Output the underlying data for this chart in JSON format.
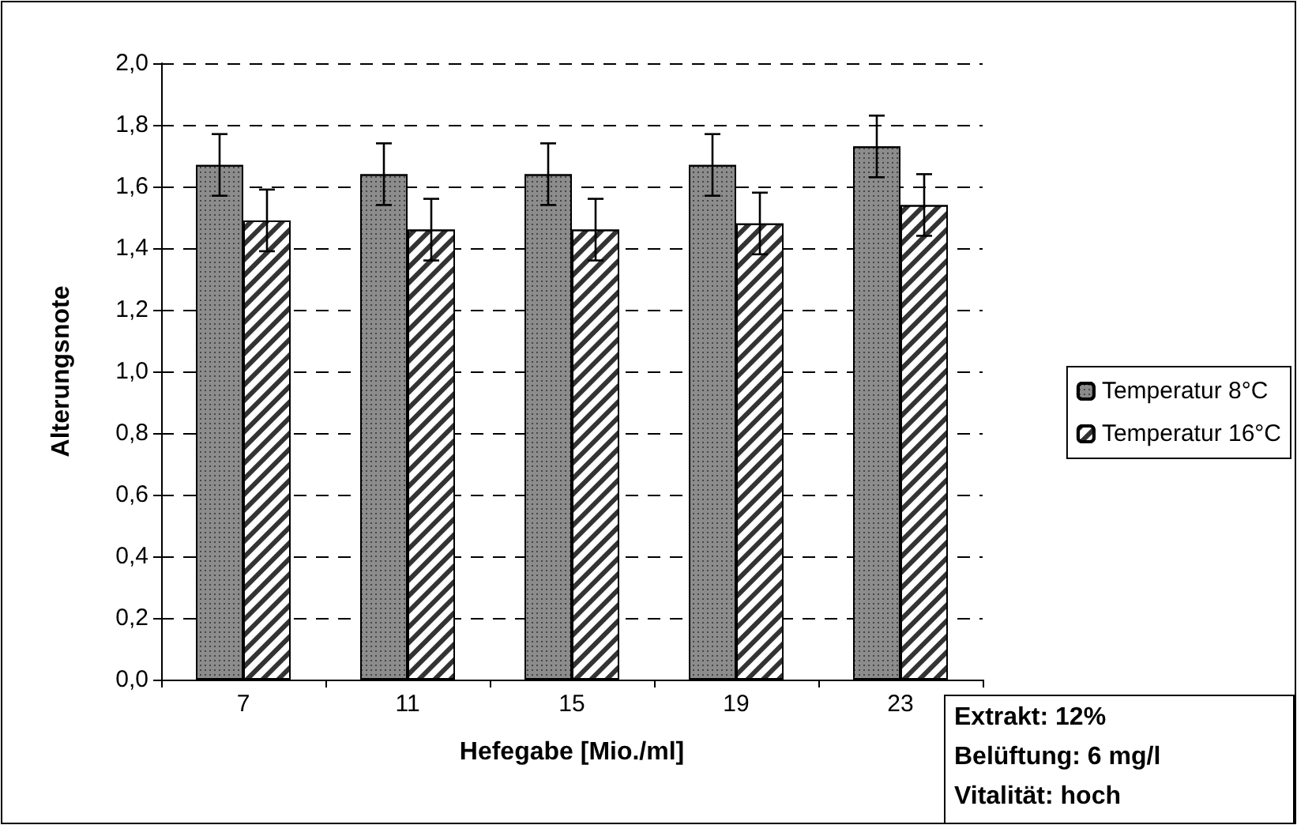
{
  "chart_data": {
    "type": "bar",
    "xlabel": "Hefegabe [Mio./ml]",
    "ylabel": "Alterungsnote",
    "categories": [
      "7",
      "11",
      "15",
      "19",
      "23"
    ],
    "series": [
      {
        "name": "Temperatur 8°C",
        "color": "#8c8c8c",
        "values": [
          1.67,
          1.64,
          1.64,
          1.67,
          1.73
        ],
        "errors": [
          0.1,
          0.1,
          0.1,
          0.1,
          0.1
        ]
      },
      {
        "name": "Temperatur 16°C",
        "color": "#ffffff",
        "values": [
          1.49,
          1.46,
          1.46,
          1.48,
          1.54
        ],
        "errors": [
          0.1,
          0.1,
          0.1,
          0.1,
          0.1
        ]
      }
    ],
    "ylim": [
      0,
      2
    ],
    "yticks": [
      {
        "value": 0,
        "label": "0,0"
      },
      {
        "value": 0.2,
        "label": "0,2"
      },
      {
        "value": 0.4,
        "label": "0,4"
      },
      {
        "value": 0.6,
        "label": "0,6"
      },
      {
        "value": 0.8,
        "label": "0,8"
      },
      {
        "value": 1,
        "label": "1,0"
      },
      {
        "value": 1.2,
        "label": "1,2"
      },
      {
        "value": 1.4,
        "label": "1,4"
      },
      {
        "value": 1.6,
        "label": "1,6"
      },
      {
        "value": 1.8,
        "label": "1,8"
      },
      {
        "value": 2,
        "label": "2,0"
      }
    ],
    "grid": "y",
    "legend": "right",
    "annotations": [
      "Extrakt: 12%",
      "Belüftung: 6 mg/l",
      "Vitalität: hoch"
    ]
  }
}
